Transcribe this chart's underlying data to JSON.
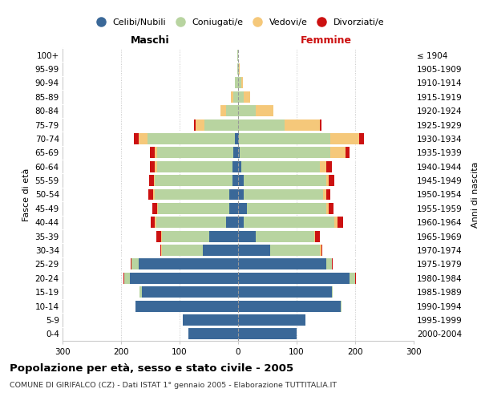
{
  "age_groups": [
    "0-4",
    "5-9",
    "10-14",
    "15-19",
    "20-24",
    "25-29",
    "30-34",
    "35-39",
    "40-44",
    "45-49",
    "50-54",
    "55-59",
    "60-64",
    "65-69",
    "70-74",
    "75-79",
    "80-84",
    "85-89",
    "90-94",
    "95-99",
    "100+"
  ],
  "birth_years": [
    "2000-2004",
    "1995-1999",
    "1990-1994",
    "1985-1989",
    "1980-1984",
    "1975-1979",
    "1970-1974",
    "1965-1969",
    "1960-1964",
    "1955-1959",
    "1950-1954",
    "1945-1949",
    "1940-1944",
    "1935-1939",
    "1930-1934",
    "1925-1929",
    "1920-1924",
    "1915-1919",
    "1910-1914",
    "1905-1909",
    "≤ 1904"
  ],
  "male_celibi": [
    85,
    95,
    175,
    165,
    185,
    170,
    60,
    50,
    20,
    15,
    15,
    10,
    10,
    8,
    5,
    0,
    0,
    0,
    0,
    0,
    0
  ],
  "male_coniugati": [
    0,
    0,
    0,
    3,
    10,
    12,
    70,
    80,
    120,
    122,
    128,
    132,
    128,
    130,
    150,
    58,
    20,
    8,
    5,
    2,
    1
  ],
  "male_vedovi": [
    0,
    0,
    0,
    0,
    0,
    0,
    1,
    2,
    2,
    2,
    2,
    2,
    5,
    5,
    15,
    15,
    10,
    4,
    1,
    0,
    0
  ],
  "male_divorziati": [
    0,
    0,
    0,
    0,
    1,
    1,
    2,
    8,
    7,
    7,
    8,
    8,
    8,
    8,
    8,
    2,
    0,
    0,
    0,
    0,
    0
  ],
  "female_nubili": [
    100,
    115,
    175,
    160,
    190,
    150,
    55,
    30,
    10,
    15,
    10,
    10,
    5,
    3,
    2,
    0,
    0,
    0,
    0,
    0,
    0
  ],
  "female_coniugate": [
    0,
    0,
    2,
    2,
    10,
    10,
    85,
    100,
    155,
    135,
    135,
    140,
    135,
    155,
    155,
    80,
    30,
    10,
    5,
    2,
    0
  ],
  "female_vedove": [
    0,
    0,
    0,
    0,
    0,
    0,
    2,
    2,
    5,
    5,
    5,
    5,
    10,
    25,
    50,
    60,
    30,
    10,
    3,
    1,
    0
  ],
  "female_divorziate": [
    0,
    0,
    0,
    0,
    2,
    2,
    2,
    8,
    10,
    8,
    8,
    10,
    10,
    8,
    8,
    2,
    0,
    0,
    0,
    0,
    0
  ],
  "c_cel": "#3a6898",
  "c_con": "#b8d4a0",
  "c_ved": "#f5c87a",
  "c_div": "#cc1111",
  "xlim": 300,
  "title": "Popolazione per età, sesso e stato civile - 2005",
  "subtitle": "COMUNE DI GIRIFALCO (CZ) - Dati ISTAT 1° gennaio 2005 - Elaborazione TUTTITALIA.IT",
  "ylabel_left": "Fasce di età",
  "ylabel_right": "Anni di nascita",
  "header_left": "Maschi",
  "header_right": "Femmine",
  "legend_labels": [
    "Celibi/Nubili",
    "Coniugati/e",
    "Vedovi/e",
    "Divorziati/e"
  ]
}
